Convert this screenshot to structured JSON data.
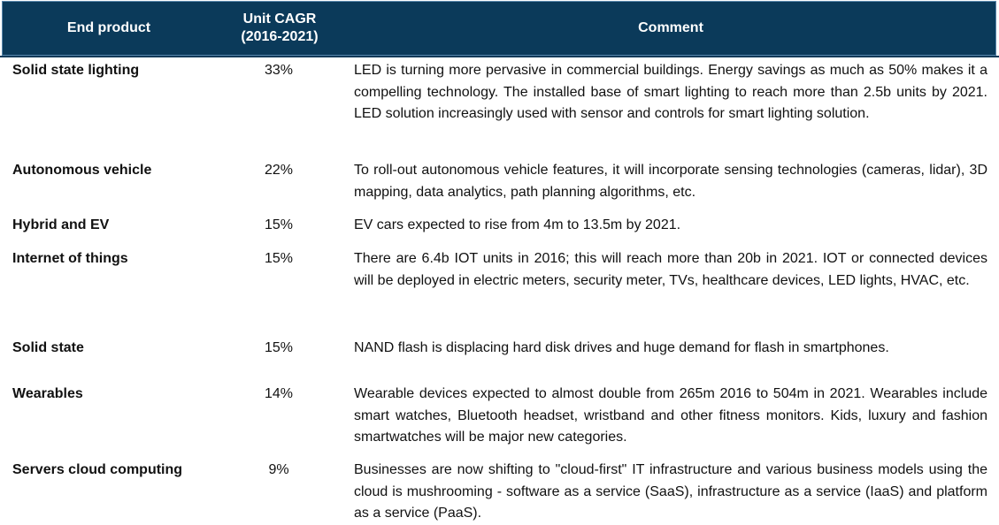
{
  "header": {
    "end_product": "End product",
    "unit_cagr_line1": "Unit CAGR",
    "unit_cagr_line2": "(2016-2021)",
    "comment": "Comment"
  },
  "rows": [
    {
      "product": "Solid state lighting",
      "cagr": "33%",
      "comment": "LED is turning more pervasive in commercial buildings. Energy savings as much as 50% makes it a compelling technology. The installed base of smart lighting to reach more than 2.5b units by 2021. LED solution increasingly used with sensor and controls for smart lighting solution."
    },
    {
      "product": "Autonomous vehicle",
      "cagr": "22%",
      "comment": "To roll-out autonomous vehicle features, it will incorporate sensing technologies (cameras, lidar), 3D mapping, data analytics, path planning algorithms, etc."
    },
    {
      "product": "Hybrid and EV",
      "cagr": "15%",
      "comment": "EV cars expected to rise from 4m to 13.5m by 2021."
    },
    {
      "product": "Internet of things",
      "cagr": "15%",
      "comment": "There are 6.4b IOT units in 2016; this will reach more than 20b in 2021. IOT or connected devices will be deployed in electric meters, security meter, TVs, healthcare devices, LED lights, HVAC, etc."
    },
    {
      "product": "Solid state",
      "cagr": "15%",
      "comment": "NAND flash is displacing hard disk drives and huge demand for flash in smartphones."
    },
    {
      "product": "Wearables",
      "cagr": "14%",
      "comment": "Wearable devices expected to almost double from 265m 2016 to 504m in 2021. Wearables include smart watches, Bluetooth headset, wristband and other fitness monitors. Kids, luxury and fashion smartwatches will be major new categories."
    },
    {
      "product": "Servers cloud computing",
      "cagr": "9%",
      "comment": "Businesses are now shifting to \"cloud-first\" IT infrastructure and various business models using the cloud is mushrooming - software as a service (SaaS), infrastructure as a service (IaaS) and platform as a service (PaaS)."
    }
  ]
}
